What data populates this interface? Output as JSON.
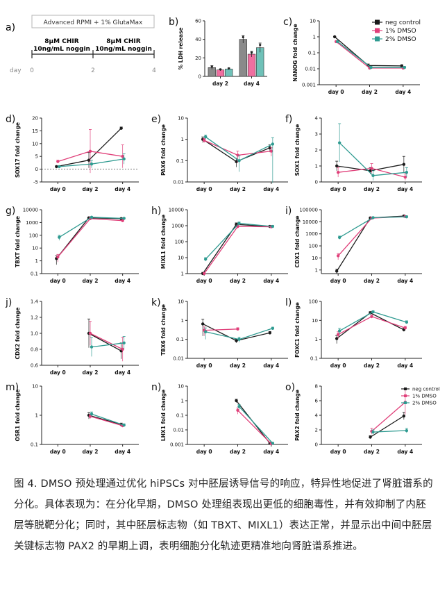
{
  "caption": "图 4. DMSO 预处理通过优化 hiPSCs 对中胚层诱导信号的响应，特异性地促进了肾脏谱系的分化。具体表现为：在分化早期，DMSO 处理组表现出更低的细胞毒性，并有效抑制了内胚层等脱靶分化；同时，其中胚层标志物（如 TBXT、MIXL1）表达正常，并显示出中间中胚层关键标志物 PAX2 的早期上调，表明细胞分化轨迹更精准地向肾脏谱系推进。",
  "colors": {
    "neg": "#1a1a1a",
    "dmso1": "#e0407a",
    "dmso2": "#2f9b91",
    "bar_neg": "#8a8a8a",
    "bar_dmso1": "#ef6fa0",
    "bar_dmso2": "#6fc1b8"
  },
  "panel_a": {
    "label": "a)",
    "medium": "Advanced RPMI + 1% GlutaMax",
    "step1_line1": "8μM CHIR",
    "step1_line2": "10ng/mL noggin",
    "step2_line1": "8μM CHIR",
    "step2_line2": "10ng/mL noggin",
    "day_label": "day",
    "day0": "0",
    "day2": "2",
    "day4": "4"
  },
  "legend": {
    "neg": "neg control",
    "dmso1": "1% DMSO",
    "dmso2": "2% DMSO"
  },
  "chart_data": [
    {
      "id": "b",
      "type": "bar",
      "label": "b)",
      "ylabel": "% LDH release",
      "categories": [
        "day 2",
        "day 4"
      ],
      "yticks": [
        "0",
        "20",
        "40",
        "60"
      ],
      "ylim": [
        0,
        60
      ],
      "series": [
        {
          "name": "neg control",
          "values": [
            9.5,
            40
          ],
          "err": [
            2,
            4
          ]
        },
        {
          "name": "1% DMSO",
          "values": [
            7,
            24
          ],
          "err": [
            1,
            3
          ]
        },
        {
          "name": "2% DMSO",
          "values": [
            8,
            31
          ],
          "err": [
            1,
            5
          ]
        }
      ]
    },
    {
      "id": "c",
      "type": "line",
      "label": "c)",
      "ylabel": "NANOG fold change",
      "scale": "log",
      "categories": [
        "day 0",
        "day 2",
        "day 4"
      ],
      "yticks": [
        "0.001",
        "0.01",
        "0.1",
        "1",
        "10"
      ],
      "ylim": [
        0.001,
        10
      ],
      "series": [
        {
          "name": "neg control",
          "values": [
            1,
            0.016,
            0.015
          ],
          "err": [
            0.1,
            0.004,
            0.003
          ]
        },
        {
          "name": "1% DMSO",
          "values": [
            0.5,
            0.011,
            0.011
          ],
          "err": [
            0.05,
            0.002,
            0.002
          ]
        },
        {
          "name": "2% DMSO",
          "values": [
            0.5,
            0.012,
            0.012
          ],
          "err": [
            0.05,
            0.002,
            0.002
          ]
        }
      ]
    },
    {
      "id": "d",
      "type": "line",
      "label": "d)",
      "ylabel": "SOX17 fold change",
      "scale": "linear",
      "categories": [
        "day 0",
        "day 2",
        "day 4"
      ],
      "yticks": [
        "-5",
        "0",
        "5",
        "10",
        "15",
        "20"
      ],
      "ylim": [
        -5,
        20
      ],
      "zero_line": true,
      "series": [
        {
          "name": "neg control",
          "values": [
            1,
            3.5,
            16
          ],
          "err": [
            0.3,
            3,
            0.5
          ]
        },
        {
          "name": "1% DMSO",
          "values": [
            3,
            7,
            5
          ],
          "err": [
            0.5,
            8.5,
            4.5
          ]
        },
        {
          "name": "2% DMSO",
          "values": [
            1,
            2,
            4
          ],
          "err": [
            0.3,
            1.5,
            2
          ]
        }
      ]
    },
    {
      "id": "e",
      "type": "line",
      "label": "e)",
      "ylabel": "PAX6 fold change",
      "scale": "log",
      "categories": [
        "day 0",
        "day 2",
        "day 4"
      ],
      "yticks": [
        "0.01",
        "0.1",
        "1",
        "10"
      ],
      "ylim": [
        0.01,
        10
      ],
      "series": [
        {
          "name": "neg control",
          "values": [
            1,
            0.09,
            0.4
          ],
          "err": [
            0.3,
            0.04,
            0.15
          ]
        },
        {
          "name": "1% DMSO",
          "values": [
            0.9,
            0.18,
            0.28
          ],
          "err": [
            0.2,
            0.1,
            0.12
          ]
        },
        {
          "name": "2% DMSO",
          "values": [
            1.3,
            0.1,
            0.6
          ],
          "err": [
            0.3,
            0.07,
            0.6
          ]
        }
      ]
    },
    {
      "id": "f",
      "type": "line",
      "label": "f)",
      "ylabel": "SOX1 fold change",
      "scale": "linear",
      "categories": [
        "day 0",
        "day 2",
        "day 4"
      ],
      "yticks": [
        "0",
        "1",
        "2",
        "3",
        "4"
      ],
      "ylim": [
        0,
        4
      ],
      "series": [
        {
          "name": "neg control",
          "values": [
            1,
            0.7,
            1.1
          ],
          "err": [
            0.3,
            0.2,
            0.5
          ]
        },
        {
          "name": "1% DMSO",
          "values": [
            0.6,
            0.85,
            0.3
          ],
          "err": [
            0.3,
            0.3,
            0.2
          ]
        },
        {
          "name": "2% DMSO",
          "values": [
            2.45,
            0.4,
            0.6
          ],
          "err": [
            1.2,
            0.3,
            0.3
          ]
        }
      ]
    },
    {
      "id": "g",
      "type": "line",
      "label": "g)",
      "ylabel": "TBXT fold change",
      "scale": "log",
      "categories": [
        "day 0",
        "day 2",
        "day 4"
      ],
      "yticks": [
        "0.1",
        "1",
        "10",
        "100",
        "1000",
        "10000"
      ],
      "ylim": [
        0.1,
        10000
      ],
      "series": [
        {
          "name": "neg control",
          "values": [
            1.5,
            2300,
            2000
          ],
          "err": [
            1.0,
            400,
            300
          ]
        },
        {
          "name": "1% DMSO",
          "values": [
            2,
            2000,
            1400
          ],
          "err": [
            1.2,
            300,
            200
          ]
        },
        {
          "name": "2% DMSO",
          "values": [
            70,
            2600,
            2100
          ],
          "err": [
            30,
            300,
            300
          ]
        }
      ]
    },
    {
      "id": "h",
      "type": "line",
      "label": "h)",
      "ylabel": "MIXL1 fold change",
      "scale": "log",
      "categories": [
        "day 0",
        "day 2",
        "day 4"
      ],
      "yticks": [
        "1",
        "10",
        "100",
        "1000",
        "10000"
      ],
      "ylim": [
        1,
        10000
      ],
      "series": [
        {
          "name": "neg control",
          "values": [
            1,
            1200,
            900
          ],
          "err": [
            0.2,
            300,
            150
          ]
        },
        {
          "name": "1% DMSO",
          "values": [
            1,
            900,
            850
          ],
          "err": [
            0.2,
            200,
            150
          ]
        },
        {
          "name": "2% DMSO",
          "values": [
            8,
            1400,
            900
          ],
          "err": [
            2,
            300,
            150
          ]
        }
      ]
    },
    {
      "id": "i",
      "type": "line",
      "label": "i)",
      "ylabel": "CDX1 fold change",
      "scale": "log",
      "categories": [
        "day 0",
        "day 2",
        "day 4"
      ],
      "yticks": [
        "1",
        "10",
        "100",
        "1000",
        "10000",
        "100000"
      ],
      "ylim": [
        0.5,
        100000
      ],
      "series": [
        {
          "name": "neg control",
          "values": [
            0.8,
            21000,
            30000
          ],
          "err": [
            0.4,
            3000,
            5000
          ]
        },
        {
          "name": "1% DMSO",
          "values": [
            15,
            20000,
            27000
          ],
          "err": [
            8,
            3000,
            5000
          ]
        },
        {
          "name": "2% DMSO",
          "values": [
            500,
            22000,
            26000
          ],
          "err": [
            150,
            3000,
            5000
          ]
        }
      ]
    },
    {
      "id": "j",
      "type": "line",
      "label": "j)",
      "ylabel": "CDX2 fold change",
      "scale": "linear",
      "categories": [
        "day 0",
        "day 2",
        "day 4"
      ],
      "yticks": [
        "0.6",
        "0.8",
        "1.0",
        "1.2",
        "1.4"
      ],
      "ylim": [
        0.6,
        1.4
      ],
      "series": [
        {
          "name": "neg control",
          "values": [
            null,
            1.0,
            0.78
          ],
          "err": [
            0,
            0.18,
            0.1
          ]
        },
        {
          "name": "1% DMSO",
          "values": [
            null,
            1.0,
            0.8
          ],
          "err": [
            0,
            0.15,
            0.15
          ]
        },
        {
          "name": "2% DMSO",
          "values": [
            null,
            0.83,
            0.88
          ],
          "err": [
            0,
            0.12,
            0.08
          ]
        }
      ]
    },
    {
      "id": "k",
      "type": "line",
      "label": "k)",
      "ylabel": "TBX6 fold change",
      "scale": "log",
      "categories": [
        "day 0",
        "day 2",
        "day 4"
      ],
      "yticks": [
        "0.01",
        "0.1",
        "1",
        "10"
      ],
      "ylim": [
        0.01,
        10
      ],
      "series": [
        {
          "name": "neg control",
          "values": [
            0.65,
            0.085,
            0.22
          ],
          "err": [
            0.5,
            0.02,
            0.04
          ]
        },
        {
          "name": "1% DMSO",
          "values": [
            0.3,
            0.35,
            null
          ],
          "err": [
            0.15,
            0.06,
            0
          ]
        },
        {
          "name": "2% DMSO",
          "values": [
            0.25,
            0.1,
            0.38
          ],
          "err": [
            0.15,
            0.03,
            0.06
          ]
        }
      ]
    },
    {
      "id": "l",
      "type": "line",
      "label": "l)",
      "ylabel": "FOXC1 fold change",
      "scale": "log",
      "categories": [
        "day 0",
        "day 2",
        "day 4"
      ],
      "yticks": [
        "0.1",
        "1",
        "10",
        "100"
      ],
      "ylim": [
        0.1,
        100
      ],
      "series": [
        {
          "name": "neg control",
          "values": [
            1.1,
            25,
            3.2
          ],
          "err": [
            0.5,
            4,
            0.6
          ]
        },
        {
          "name": "1% DMSO",
          "values": [
            1.8,
            16,
            4
          ],
          "err": [
            0.7,
            3,
            0.8
          ]
        },
        {
          "name": "2% DMSO",
          "values": [
            2.8,
            28,
            8
          ],
          "err": [
            1.0,
            4,
            1.5
          ]
        }
      ]
    },
    {
      "id": "m",
      "type": "line",
      "label": "m)",
      "ylabel": "OSR1 fold change",
      "scale": "log",
      "categories": [
        "day 0",
        "day 2",
        "day 4"
      ],
      "yticks": [
        "0.1",
        "1",
        "10"
      ],
      "ylim": [
        0.1,
        10
      ],
      "series": [
        {
          "name": "neg control",
          "values": [
            null,
            1.0,
            0.48
          ],
          "err": [
            0,
            0.25,
            0.06
          ]
        },
        {
          "name": "1% DMSO",
          "values": [
            null,
            0.92,
            0.44
          ],
          "err": [
            0,
            0.15,
            0.05
          ]
        },
        {
          "name": "2% DMSO",
          "values": [
            null,
            1.1,
            0.46
          ],
          "err": [
            0,
            0.2,
            0.05
          ]
        }
      ]
    },
    {
      "id": "n",
      "type": "line",
      "label": "n)",
      "ylabel": "LHX1 fold change",
      "scale": "log",
      "categories": [
        "day 0",
        "day 2",
        "day 4"
      ],
      "yticks": [
        "0.001",
        "0.01",
        "0.1",
        "1",
        "10"
      ],
      "ylim": [
        0.001,
        10
      ],
      "series": [
        {
          "name": "neg control",
          "values": [
            null,
            1.0,
            0.0012
          ],
          "err": [
            0,
            0.25,
            0.0002
          ]
        },
        {
          "name": "1% DMSO",
          "values": [
            null,
            0.22,
            0.0011
          ],
          "err": [
            0,
            0.1,
            0.0002
          ]
        },
        {
          "name": "2% DMSO",
          "values": [
            null,
            0.4,
            0.0012
          ],
          "err": [
            0,
            0.15,
            0.0002
          ]
        }
      ]
    },
    {
      "id": "o",
      "type": "line",
      "label": "o)",
      "ylabel": "PAX2 fold change",
      "scale": "linear",
      "categories": [
        "day 0",
        "day 2",
        "day 4"
      ],
      "yticks": [
        "0",
        "2",
        "4",
        "6",
        "8"
      ],
      "ylim": [
        0,
        8
      ],
      "series": [
        {
          "name": "neg control",
          "values": [
            null,
            1.0,
            3.9
          ],
          "err": [
            0,
            0.2,
            0.5
          ]
        },
        {
          "name": "1% DMSO",
          "values": [
            null,
            1.8,
            5.8
          ],
          "err": [
            0,
            0.4,
            1.7
          ]
        },
        {
          "name": "2% DMSO",
          "values": [
            null,
            1.7,
            1.9
          ],
          "err": [
            0,
            0.3,
            0.3
          ]
        }
      ]
    }
  ]
}
